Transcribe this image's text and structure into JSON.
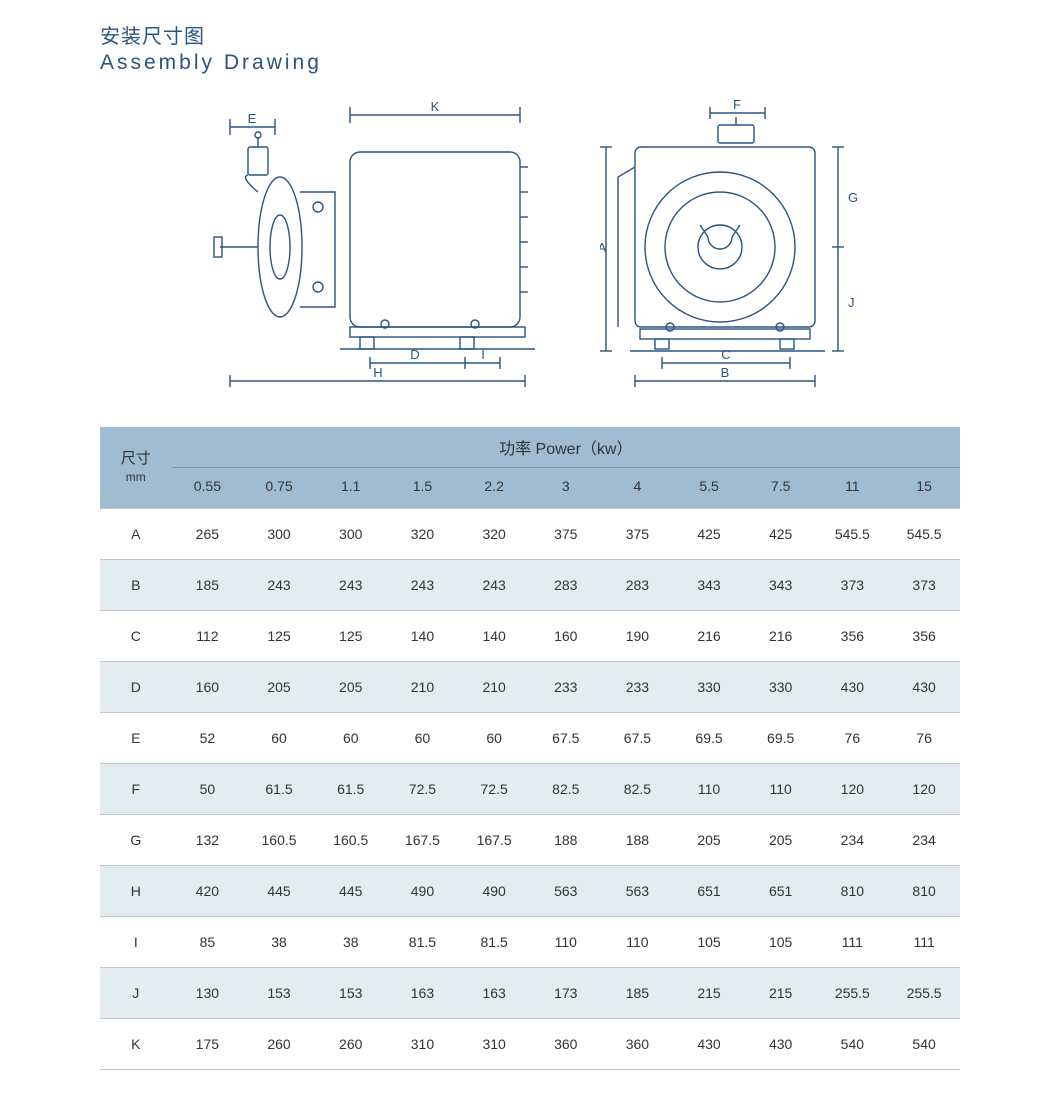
{
  "title": {
    "cn": "安装尺寸图",
    "en": "Assembly Drawing"
  },
  "colors": {
    "header_bg": "#9fbcd1",
    "row_even_bg": "#e4ecef",
    "row_odd_bg": "#ffffff",
    "title_color": "#2a5580",
    "text_color": "#333333",
    "border_color": "#b8c9d3",
    "drawing_stroke": "#2a5580"
  },
  "table": {
    "corner_label_top": "尺寸",
    "corner_label_bottom": "mm",
    "group_header": "功率 Power（kw）",
    "columns": [
      "0.55",
      "0.75",
      "1.1",
      "1.5",
      "2.2",
      "3",
      "4",
      "5.5",
      "7.5",
      "11",
      "15"
    ],
    "rows": [
      {
        "label": "A",
        "values": [
          "265",
          "300",
          "300",
          "320",
          "320",
          "375",
          "375",
          "425",
          "425",
          "545.5",
          "545.5"
        ]
      },
      {
        "label": "B",
        "values": [
          "185",
          "243",
          "243",
          "243",
          "243",
          "283",
          "283",
          "343",
          "343",
          "373",
          "373"
        ]
      },
      {
        "label": "C",
        "values": [
          "112",
          "125",
          "125",
          "140",
          "140",
          "160",
          "190",
          "216",
          "216",
          "356",
          "356"
        ]
      },
      {
        "label": "D",
        "values": [
          "160",
          "205",
          "205",
          "210",
          "210",
          "233",
          "233",
          "330",
          "330",
          "430",
          "430"
        ]
      },
      {
        "label": "E",
        "values": [
          "52",
          "60",
          "60",
          "60",
          "60",
          "67.5",
          "67.5",
          "69.5",
          "69.5",
          "76",
          "76"
        ]
      },
      {
        "label": "F",
        "values": [
          "50",
          "61.5",
          "61.5",
          "72.5",
          "72.5",
          "82.5",
          "82.5",
          "110",
          "110",
          "120",
          "120"
        ]
      },
      {
        "label": "G",
        "values": [
          "132",
          "160.5",
          "160.5",
          "167.5",
          "167.5",
          "188",
          "188",
          "205",
          "205",
          "234",
          "234"
        ]
      },
      {
        "label": "H",
        "values": [
          "420",
          "445",
          "445",
          "490",
          "490",
          "563",
          "563",
          "651",
          "651",
          "810",
          "810"
        ]
      },
      {
        "label": "I",
        "values": [
          "85",
          "38",
          "38",
          "81.5",
          "81.5",
          "110",
          "110",
          "105",
          "105",
          "111",
          "111"
        ]
      },
      {
        "label": "J",
        "values": [
          "130",
          "153",
          "153",
          "163",
          "163",
          "173",
          "185",
          "215",
          "215",
          "255.5",
          "255.5"
        ]
      },
      {
        "label": "K",
        "values": [
          "175",
          "260",
          "260",
          "310",
          "310",
          "360",
          "360",
          "430",
          "430",
          "540",
          "540"
        ]
      }
    ]
  },
  "drawing": {
    "dim_labels_left": [
      "E",
      "K",
      "D",
      "I",
      "H"
    ],
    "dim_labels_right": [
      "F",
      "A",
      "G",
      "J",
      "C",
      "B"
    ]
  }
}
